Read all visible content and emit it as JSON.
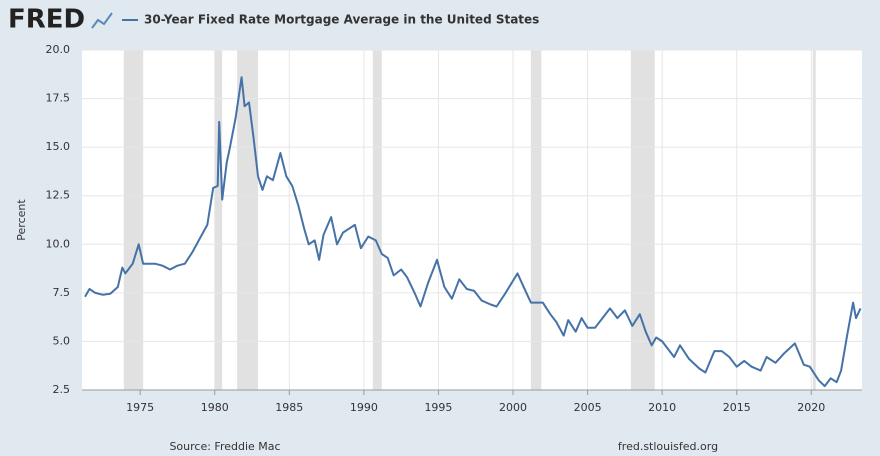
{
  "chart_data": {
    "type": "line",
    "logo": "FRED",
    "ylabel": "Percent",
    "source": "Source: Freddie Mac",
    "site": "fred.stlouisfed.org",
    "xlim": [
      1971.1,
      2023.4
    ],
    "xticks": [
      1975,
      1980,
      1985,
      1990,
      1995,
      2000,
      2005,
      2010,
      2015,
      2020
    ],
    "ylim": [
      2.5,
      20
    ],
    "yticks": [
      2.5,
      {
        "value": 5,
        "label": "5.0"
      },
      7.5,
      {
        "value": 10,
        "label": "10.0"
      },
      12.5,
      {
        "value": 15,
        "label": "15.0"
      },
      17.5,
      {
        "value": 20,
        "label": "20.0"
      }
    ],
    "grid": true,
    "recessions": [
      [
        1973.9,
        1975.2
      ],
      [
        1980.0,
        1980.5
      ],
      [
        1981.5,
        1982.9
      ],
      [
        1990.6,
        1991.2
      ],
      [
        2001.2,
        2001.9
      ],
      [
        2007.9,
        2009.5
      ],
      [
        2020.1,
        2020.3
      ]
    ],
    "recession_color": "#e1e1e1",
    "x": [
      1971.3,
      1971.6,
      1972.0,
      1972.5,
      1973.0,
      1973.5,
      1973.8,
      1974.0,
      1974.5,
      1974.9,
      1975.2,
      1975.6,
      1976.0,
      1976.5,
      1977.0,
      1977.5,
      1978.0,
      1978.5,
      1979.0,
      1979.5,
      1979.9,
      1980.2,
      1980.3,
      1980.5,
      1980.8,
      1981.0,
      1981.4,
      1981.8,
      1982.0,
      1982.3,
      1982.6,
      1982.9,
      1983.2,
      1983.5,
      1983.9,
      1984.4,
      1984.8,
      1985.2,
      1985.6,
      1986.0,
      1986.3,
      1986.7,
      1987.0,
      1987.3,
      1987.8,
      1988.2,
      1988.6,
      1989.0,
      1989.4,
      1989.8,
      1990.3,
      1990.8,
      1991.2,
      1991.6,
      1992.0,
      1992.5,
      1992.9,
      1993.4,
      1993.8,
      1994.3,
      1994.9,
      1995.4,
      1995.9,
      1996.4,
      1996.9,
      1997.4,
      1997.9,
      1998.5,
      1998.9,
      1999.5,
      2000.3,
      2000.9,
      2001.2,
      2001.6,
      2002.0,
      2002.5,
      2002.9,
      2003.4,
      2003.7,
      2004.2,
      2004.6,
      2005.0,
      2005.5,
      2006.0,
      2006.5,
      2007.0,
      2007.5,
      2008.0,
      2008.5,
      2008.9,
      2009.3,
      2009.6,
      2010.0,
      2010.8,
      2011.2,
      2011.8,
      2012.5,
      2012.9,
      2013.5,
      2014.0,
      2014.5,
      2015.0,
      2015.5,
      2016.0,
      2016.6,
      2017.0,
      2017.6,
      2018.2,
      2018.9,
      2019.5,
      2019.9,
      2020.5,
      2020.9,
      2021.3,
      2021.7,
      2022.0,
      2022.4,
      2022.8,
      2023.0,
      2023.3
    ],
    "series": [
      {
        "name": "30-Year Fixed Rate Mortgage Average in the United States",
        "color": "#4572a7",
        "values": [
          7.3,
          7.7,
          7.5,
          7.4,
          7.45,
          7.8,
          8.8,
          8.5,
          9.0,
          10.0,
          9.0,
          9.0,
          9.0,
          8.9,
          8.7,
          8.9,
          9.0,
          9.6,
          10.3,
          11.0,
          12.9,
          13.0,
          16.3,
          12.3,
          14.2,
          14.9,
          16.5,
          18.6,
          17.1,
          17.3,
          15.5,
          13.5,
          12.8,
          13.5,
          13.3,
          14.7,
          13.5,
          13.0,
          12.0,
          10.8,
          10.0,
          10.2,
          9.2,
          10.5,
          11.4,
          10.0,
          10.6,
          10.8,
          11.0,
          9.8,
          10.4,
          10.2,
          9.5,
          9.3,
          8.4,
          8.7,
          8.3,
          7.5,
          6.8,
          8.0,
          9.2,
          7.8,
          7.2,
          8.2,
          7.7,
          7.6,
          7.1,
          6.9,
          6.8,
          7.5,
          8.5,
          7.5,
          7.0,
          7.0,
          7.0,
          6.4,
          6.0,
          5.3,
          6.1,
          5.5,
          6.2,
          5.7,
          5.7,
          6.2,
          6.7,
          6.2,
          6.6,
          5.8,
          6.4,
          5.5,
          4.8,
          5.2,
          5.0,
          4.2,
          4.8,
          4.1,
          3.6,
          3.4,
          4.5,
          4.5,
          4.2,
          3.7,
          4.0,
          3.7,
          3.5,
          4.2,
          3.9,
          4.4,
          4.9,
          3.8,
          3.7,
          3.0,
          2.7,
          3.1,
          2.9,
          3.5,
          5.3,
          7.0,
          6.2,
          6.7
        ]
      }
    ]
  }
}
